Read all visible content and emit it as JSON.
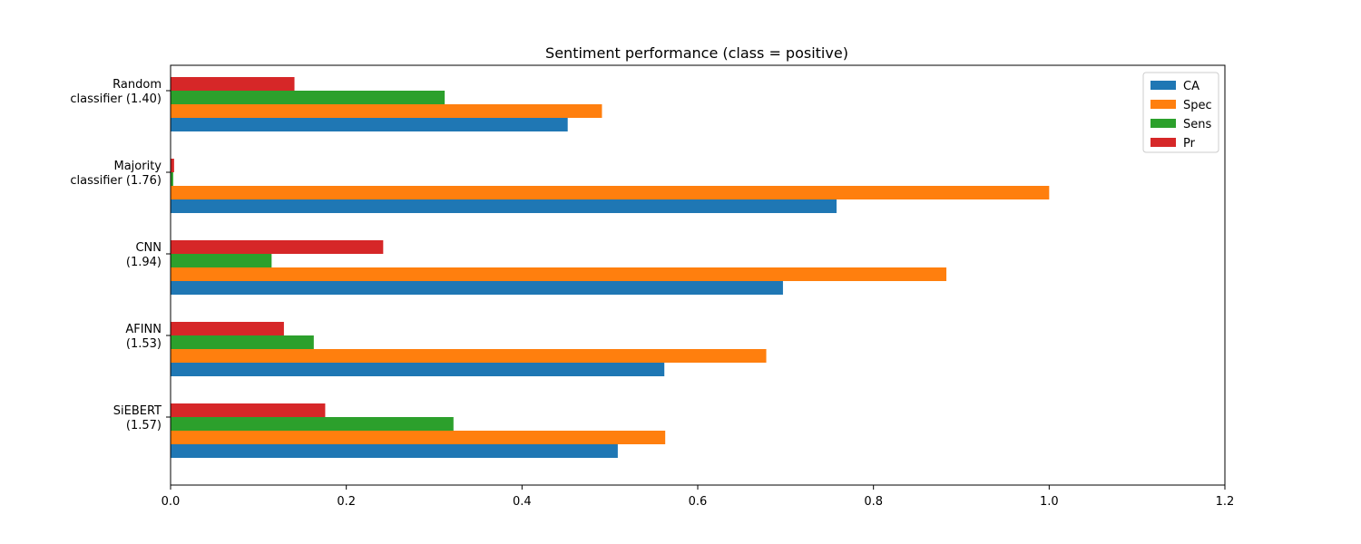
{
  "chart_data": {
    "type": "bar",
    "orientation": "horizontal",
    "title": "Sentiment performance (class = positive)",
    "xlabel": "",
    "ylabel": "",
    "xlim": [
      0,
      1.2
    ],
    "xticks": [
      "0.0",
      "0.2",
      "0.4",
      "0.6",
      "0.8",
      "1.0",
      "1.2"
    ],
    "xtick_values": [
      0,
      0.2,
      0.4,
      0.6,
      0.8,
      1.0,
      1.2
    ],
    "categories": [
      [
        "Random",
        "classifier (1.40)"
      ],
      [
        "Majority",
        "classifier (1.76)"
      ],
      [
        "CNN",
        "(1.94)"
      ],
      [
        "AFINN",
        "(1.53)"
      ],
      [
        "SiEBERT",
        "(1.57)"
      ]
    ],
    "series": [
      {
        "name": "CA",
        "color": "#1f77b4",
        "values": [
          0.452,
          0.758,
          0.697,
          0.562,
          0.509
        ]
      },
      {
        "name": "Spec",
        "color": "#ff7f0e",
        "values": [
          0.491,
          1.0,
          0.883,
          0.678,
          0.563
        ]
      },
      {
        "name": "Sens",
        "color": "#2ca02c",
        "values": [
          0.312,
          0.003,
          0.115,
          0.163,
          0.322
        ]
      },
      {
        "name": "Pr",
        "color": "#d62728",
        "values": [
          0.141,
          0.004,
          0.242,
          0.129,
          0.176
        ]
      }
    ],
    "legend_position": "top-right",
    "grid": false
  }
}
